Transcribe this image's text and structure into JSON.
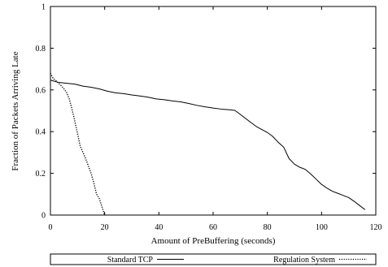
{
  "chart_data": {
    "type": "line",
    "title": "",
    "xlabel": "Amount of PreBuffering (seconds)",
    "ylabel": "Fraction of Packets Arriving Late",
    "xlim": [
      0,
      120
    ],
    "ylim": [
      0,
      1
    ],
    "xticks": [
      0,
      20,
      40,
      60,
      80,
      100,
      120
    ],
    "yticks": [
      0,
      0.2,
      0.4,
      0.6,
      0.8,
      1
    ],
    "xtick_labels": [
      "0",
      "20",
      "40",
      "60",
      "80",
      "100",
      "120"
    ],
    "ytick_labels": [
      "0",
      "0.2",
      "0.4",
      "0.6",
      "0.8",
      "1"
    ],
    "grid": false,
    "legend_position": "below plot, in a box",
    "series": [
      {
        "name": "Standard TCP",
        "style": "solid",
        "x": [
          0,
          3,
          6,
          9,
          12,
          15,
          18,
          21,
          24,
          27,
          30,
          33,
          36,
          39,
          42,
          45,
          48,
          51,
          54,
          57,
          60,
          63,
          66,
          68,
          70,
          72,
          74,
          76,
          78,
          80,
          82,
          84,
          86,
          88,
          90,
          92,
          94,
          96,
          98,
          100,
          102,
          104,
          106,
          108,
          110,
          112,
          114,
          116
        ],
        "y": [
          0.647,
          0.636,
          0.632,
          0.628,
          0.618,
          0.613,
          0.605,
          0.594,
          0.586,
          0.582,
          0.576,
          0.571,
          0.565,
          0.557,
          0.553,
          0.547,
          0.543,
          0.535,
          0.526,
          0.519,
          0.513,
          0.508,
          0.505,
          0.502,
          0.483,
          0.463,
          0.443,
          0.424,
          0.41,
          0.396,
          0.377,
          0.349,
          0.326,
          0.271,
          0.244,
          0.229,
          0.219,
          0.197,
          0.172,
          0.147,
          0.129,
          0.114,
          0.104,
          0.094,
          0.084,
          0.066,
          0.046,
          0.026
        ]
      },
      {
        "name": "Regulation System",
        "style": "dotted",
        "x": [
          0,
          1,
          2,
          3,
          4,
          5,
          6,
          7,
          8,
          9,
          10,
          11,
          12,
          13,
          14,
          15,
          16,
          17,
          18,
          19,
          20
        ],
        "y": [
          0.68,
          0.655,
          0.645,
          0.632,
          0.62,
          0.605,
          0.587,
          0.555,
          0.505,
          0.45,
          0.39,
          0.33,
          0.3,
          0.27,
          0.235,
          0.2,
          0.155,
          0.1,
          0.08,
          0.04,
          0.0
        ]
      }
    ]
  }
}
